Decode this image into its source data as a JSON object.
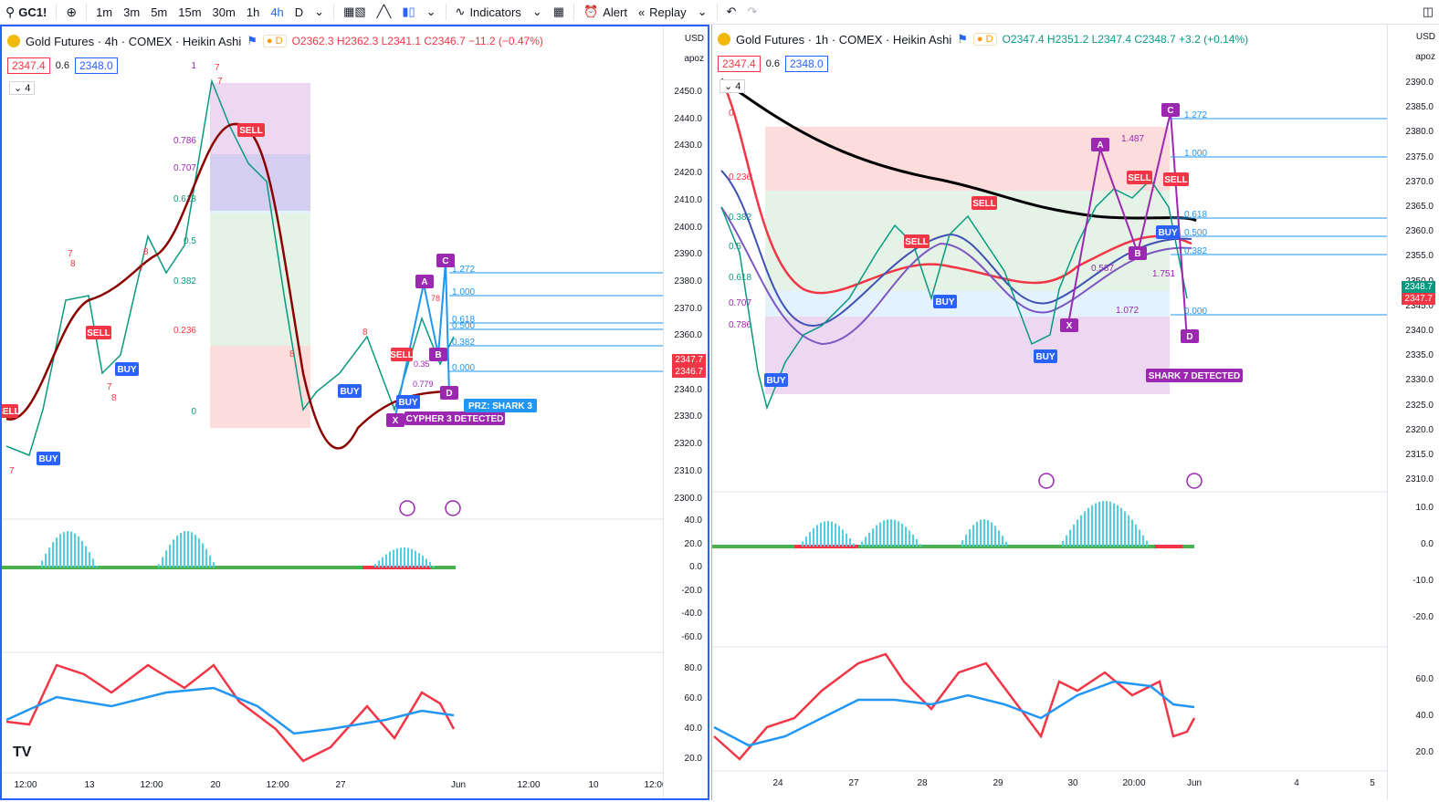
{
  "toolbar": {
    "symbol": "GC1!",
    "intervals": [
      "1m",
      "3m",
      "5m",
      "15m",
      "30m",
      "1h",
      "4h",
      "D"
    ],
    "active_interval": "4h",
    "indicators_label": "Indicators",
    "alert_label": "Alert",
    "replay_label": "Replay"
  },
  "left": {
    "title": "Gold Futures · 4h · COMEX · Heikin Ashi",
    "ohlc": "O2362.3 H2362.3 L2341.1 C2346.7 −11.2 (−0.47%)",
    "ohlc_color": "#f23645",
    "price_red": "2347.4",
    "price_blue": "2348.0",
    "spread": "0.6",
    "collapse": "4",
    "currency": "USD",
    "scale": "apoz",
    "y_ticks": [
      "2450.0",
      "2440.0",
      "2430.0",
      "2420.0",
      "2410.0",
      "2400.0",
      "2390.0",
      "2380.0",
      "2370.0",
      "2360.0",
      "2350.0",
      "2340.0",
      "2330.0",
      "2320.0",
      "2310.0",
      "2300.0"
    ],
    "last_price_tags": [
      "2347.7",
      "2346.7"
    ],
    "macd_ticks": [
      "40.0",
      "20.0",
      "0.0",
      "-20.0",
      "-40.0",
      "-60.0"
    ],
    "rsi_ticks": [
      "80.0",
      "60.0",
      "40.0",
      "20.0"
    ],
    "x_ticks": [
      "12:00",
      "13",
      "12:00",
      "20",
      "12:00",
      "27",
      "Jun",
      "12:00",
      "10",
      "12:00"
    ],
    "fib_labels": [
      "1",
      "0.786",
      "0.707",
      "0.618",
      "0.5",
      "0.382",
      "0.236",
      "0"
    ],
    "labels": {
      "sell1": "SELL",
      "sell2": "SELL",
      "buy1": "BUY",
      "buy2": "BUY",
      "buy3": "BUY",
      "buy4": "BUY",
      "sell3": "SELL",
      "sell4": "SELL"
    },
    "pattern": {
      "x": "X",
      "a": "A",
      "b": "B",
      "c": "C",
      "d": "D",
      "detected": "CYPHER 3 DETECTED",
      "prz": "PRZ: SHARK 3"
    },
    "pattern_fibs": [
      "1.272",
      "1.000",
      "0.618",
      "0.500",
      "0.382",
      "0.000"
    ],
    "pattern_ratios": [
      "0.779",
      "0.35",
      "78"
    ],
    "counts": [
      "7",
      "8",
      "7",
      "8",
      "7",
      "8",
      "7",
      "7",
      "8",
      "8",
      "7"
    ]
  },
  "right": {
    "title": "Gold Futures · 1h · COMEX · Heikin Ashi",
    "ohlc": "O2347.4 H2351.2 L2347.4 C2348.7 +3.2 (+0.14%)",
    "ohlc_color": "#089981",
    "price_red": "2347.4",
    "price_blue": "2348.0",
    "spread": "0.6",
    "collapse": "4",
    "currency": "USD",
    "scale": "apoz",
    "y_ticks": [
      "2390.0",
      "2385.0",
      "2380.0",
      "2375.0",
      "2370.0",
      "2365.0",
      "2360.0",
      "2355.0",
      "2350.0",
      "2345.0",
      "2340.0",
      "2335.0",
      "2330.0",
      "2325.0",
      "2320.0",
      "2315.0",
      "2310.0"
    ],
    "last_price_tags": [
      "2348.7",
      "2347.7"
    ],
    "macd_ticks": [
      "10.0",
      "0.0",
      "-10.0",
      "-20.0"
    ],
    "rsi_ticks": [
      "60.0",
      "40.0",
      "20.0"
    ],
    "x_ticks": [
      "24",
      "27",
      "28",
      "29",
      "30",
      "20:00",
      "Jun",
      "4",
      "5"
    ],
    "fib_labels": [
      "0",
      "0.236",
      "0.382",
      "0.5",
      "0.618",
      "0.707",
      "0.786"
    ],
    "labels": {
      "sell1": "SELL",
      "sell2": "SELL",
      "sell3": "SELL",
      "sell4": "SELL",
      "buy1": "BUY",
      "buy2": "BUY",
      "buy3": "BUY",
      "buy4": "BUY"
    },
    "pattern": {
      "x": "X",
      "a": "A",
      "b": "B",
      "c": "C",
      "d": "D",
      "detected": "SHARK 7 DETECTED"
    },
    "pattern_fibs": [
      "1.272",
      "1.000",
      "0.618",
      "0.500",
      "0.382",
      "0.000"
    ],
    "pattern_ratios": [
      "1.487",
      "0.587",
      "1.751",
      "1.072"
    ]
  }
}
